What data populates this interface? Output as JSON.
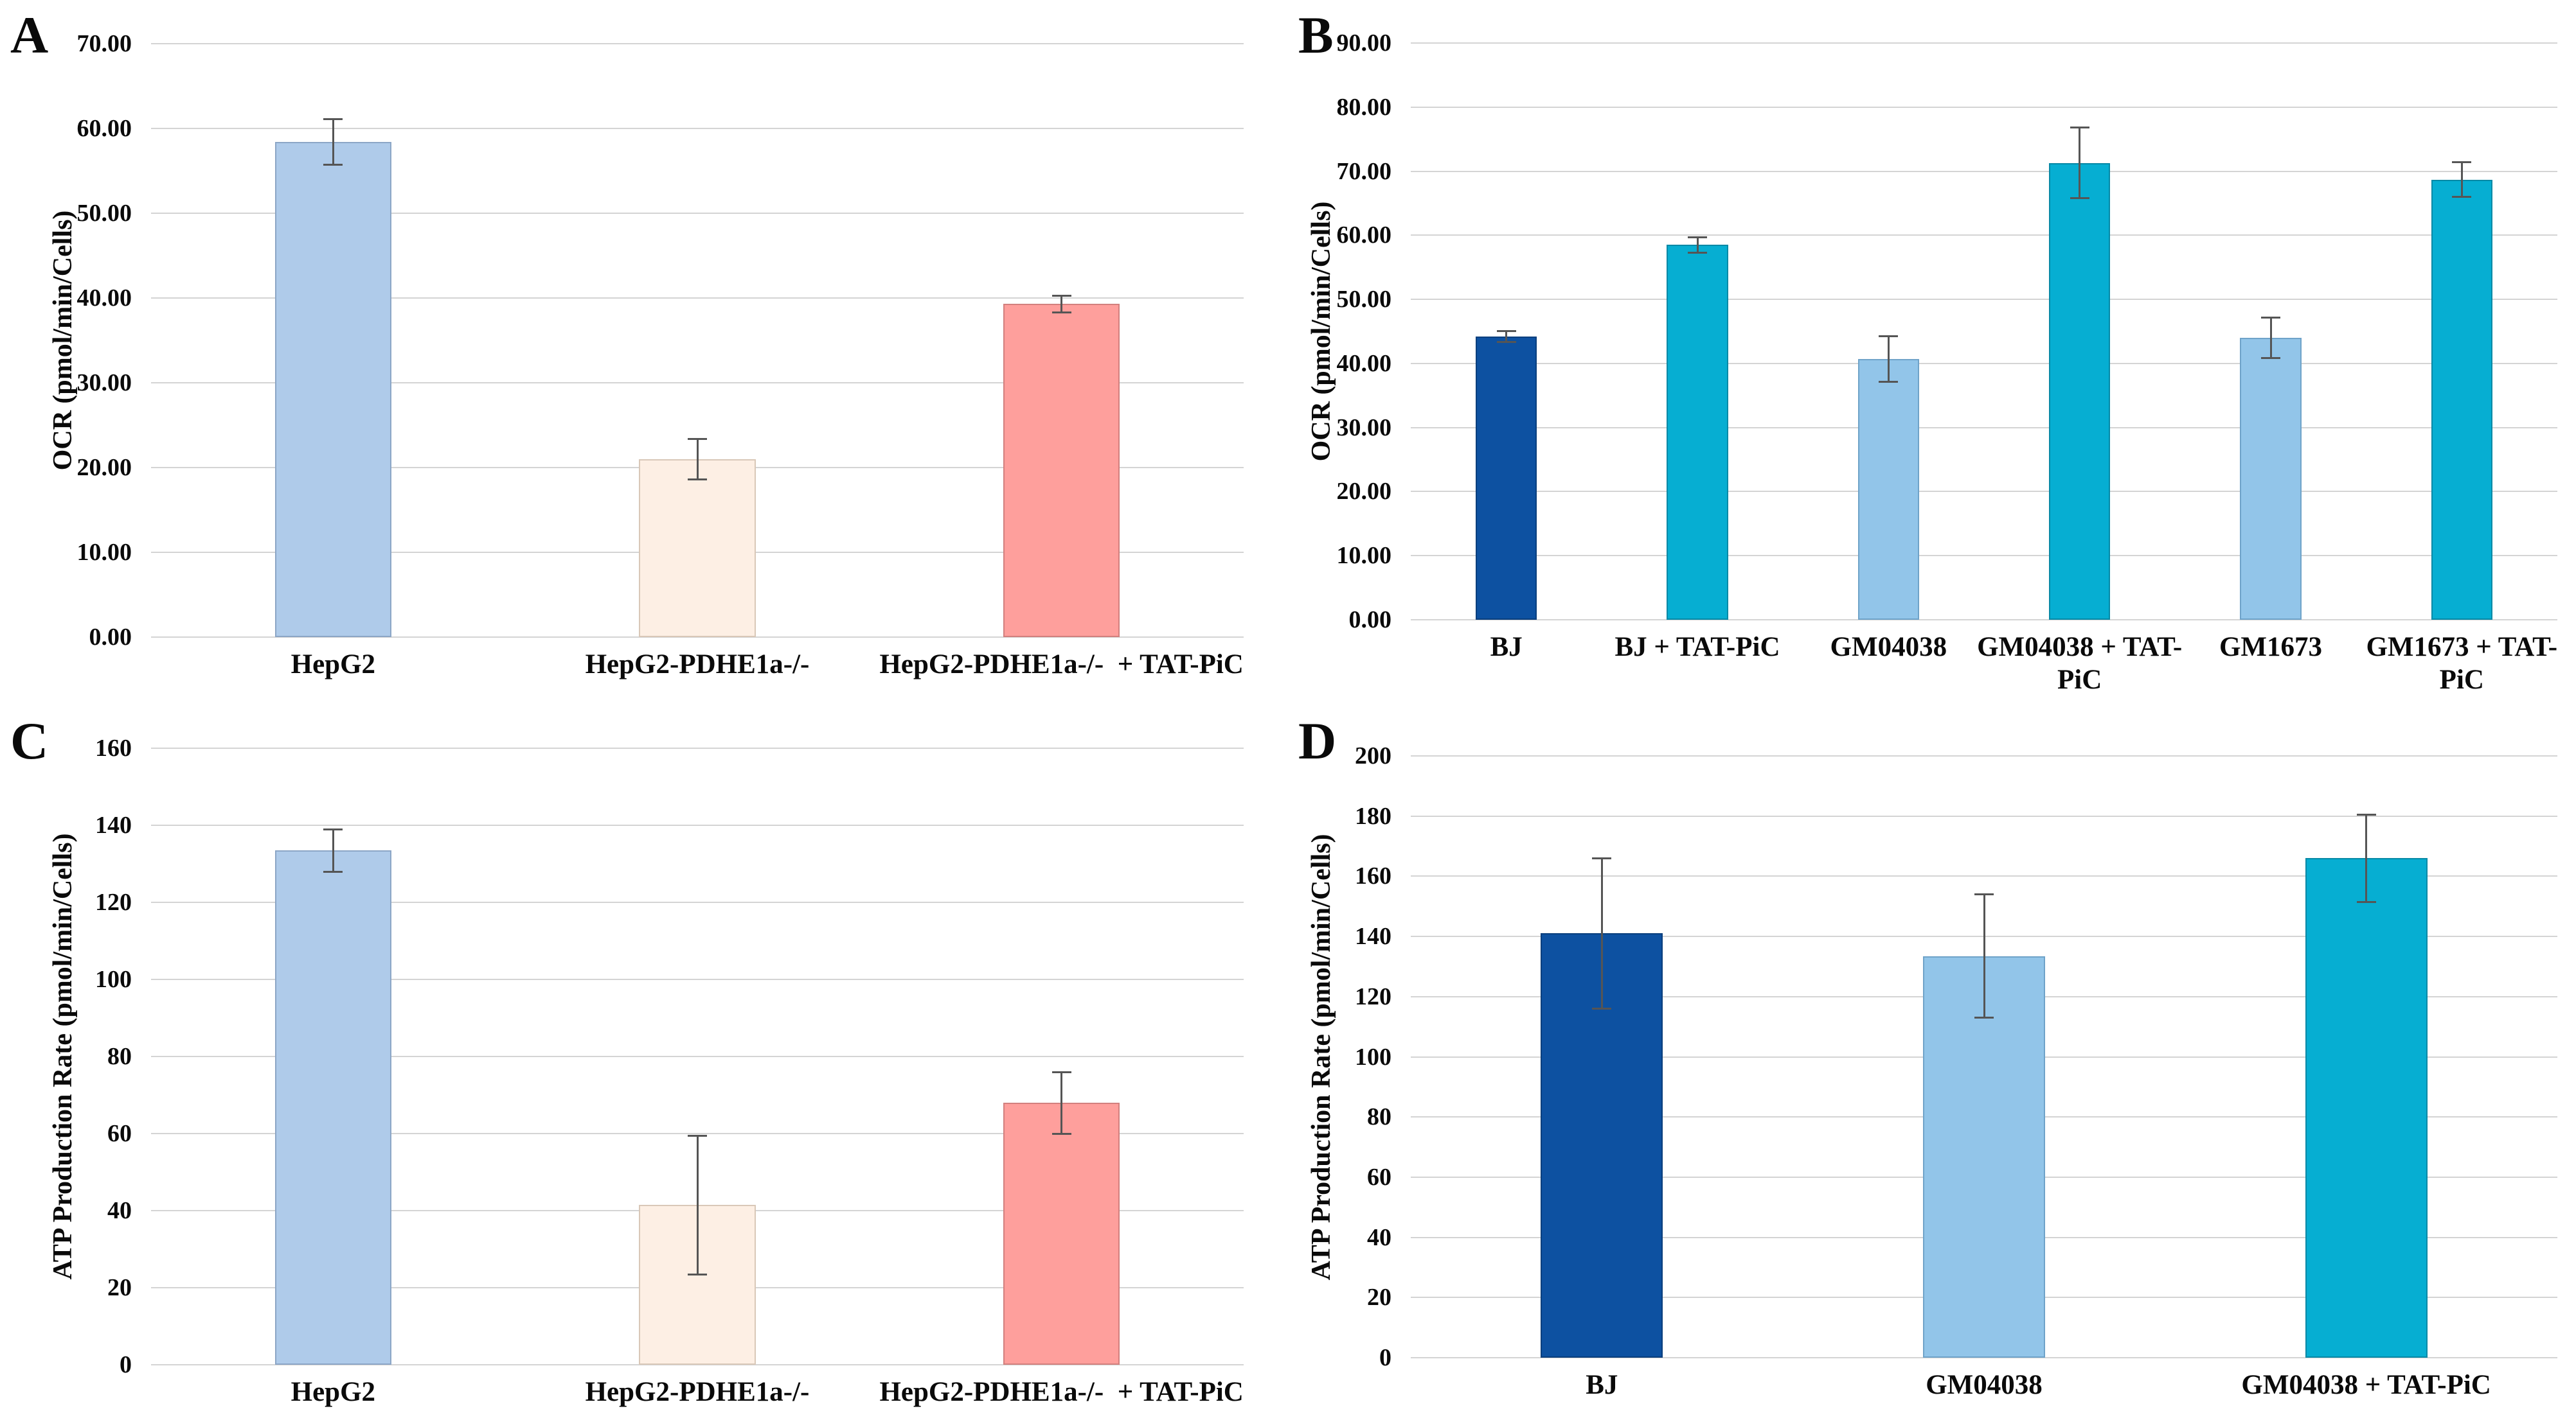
{
  "colors": {
    "background": "#ffffff",
    "gridline": "#d4d4d4",
    "error_bar": "#555555",
    "text": "#0a0a0a"
  },
  "chart_data": [
    {
      "type": "bar",
      "panel_label": "A",
      "title": "",
      "xlabel": "",
      "ylabel": "OCR (pmol/min/Cells)",
      "categories": [
        "HepG2",
        "HepG2-PDHE1a-/-",
        "HepG2-PDHE1a-/-  + TAT-PiC"
      ],
      "values": [
        58.4,
        21.0,
        39.3
      ],
      "errors": [
        2.7,
        2.4,
        1.0
      ],
      "ylim": [
        0,
        70
      ],
      "ytick_step": 10,
      "ytick_decimals": 2,
      "grid": true,
      "legend": "none",
      "bar_fill": [
        "#AFCBEA",
        "#FDEFE4",
        "#FE9F9C"
      ],
      "bar_border": [
        "#8CA6C6",
        "#D9C8B8",
        "#D2807E"
      ]
    },
    {
      "type": "bar",
      "panel_label": "B",
      "title": "",
      "xlabel": "",
      "ylabel": "OCR (pmol/min/Cells)",
      "categories": [
        "BJ",
        "BJ + TAT-PiC",
        "GM04038",
        "GM04038 + TAT-PiC",
        "GM1673",
        "GM1673 + TAT-PiC"
      ],
      "values": [
        44.2,
        58.5,
        40.7,
        71.3,
        44.0,
        68.7
      ],
      "errors": [
        0.9,
        1.2,
        3.6,
        5.5,
        3.2,
        2.7
      ],
      "ylim": [
        0,
        90
      ],
      "ytick_step": 10,
      "ytick_decimals": 2,
      "grid": true,
      "legend": "none",
      "bar_fill": [
        "#0D51A1",
        "#06AED2",
        "#92C5E9",
        "#06AED2",
        "#92C5E9",
        "#06AED2"
      ],
      "bar_border": [
        "#0A3F7D",
        "#0689A6",
        "#6FA3C9",
        "#0689A6",
        "#6FA3C9",
        "#0689A6"
      ]
    },
    {
      "type": "bar",
      "panel_label": "C",
      "title": "",
      "xlabel": "",
      "ylabel": "ATP Production Rate (pmol/min/Cells)",
      "categories": [
        "HepG2",
        "HepG2-PDHE1a-/-",
        "HepG2-PDHE1a-/-  + TAT-PiC"
      ],
      "values": [
        133.5,
        41.5,
        68.0
      ],
      "errors": [
        5.5,
        18.0,
        8.0
      ],
      "ylim": [
        0,
        160
      ],
      "ytick_step": 20,
      "ytick_decimals": 0,
      "grid": true,
      "legend": "none",
      "bar_fill": [
        "#AFCBEA",
        "#FDEFE4",
        "#FE9F9C"
      ],
      "bar_border": [
        "#8CA6C6",
        "#D9C8B8",
        "#D2807E"
      ]
    },
    {
      "type": "bar",
      "panel_label": "D",
      "title": "",
      "xlabel": "",
      "ylabel": "ATP Production Rate (pmol/min/Cells)",
      "categories": [
        "BJ",
        "GM04038",
        "GM04038 + TAT-PiC"
      ],
      "values": [
        141.0,
        133.5,
        166.0
      ],
      "errors": [
        25.0,
        20.5,
        14.5
      ],
      "ylim": [
        0,
        200
      ],
      "ytick_step": 20,
      "ytick_decimals": 0,
      "grid": true,
      "legend": "none",
      "bar_fill": [
        "#0D51A1",
        "#92C5E9",
        "#06AED2"
      ],
      "bar_border": [
        "#0A3F7D",
        "#6FA3C9",
        "#0689A6"
      ]
    }
  ]
}
